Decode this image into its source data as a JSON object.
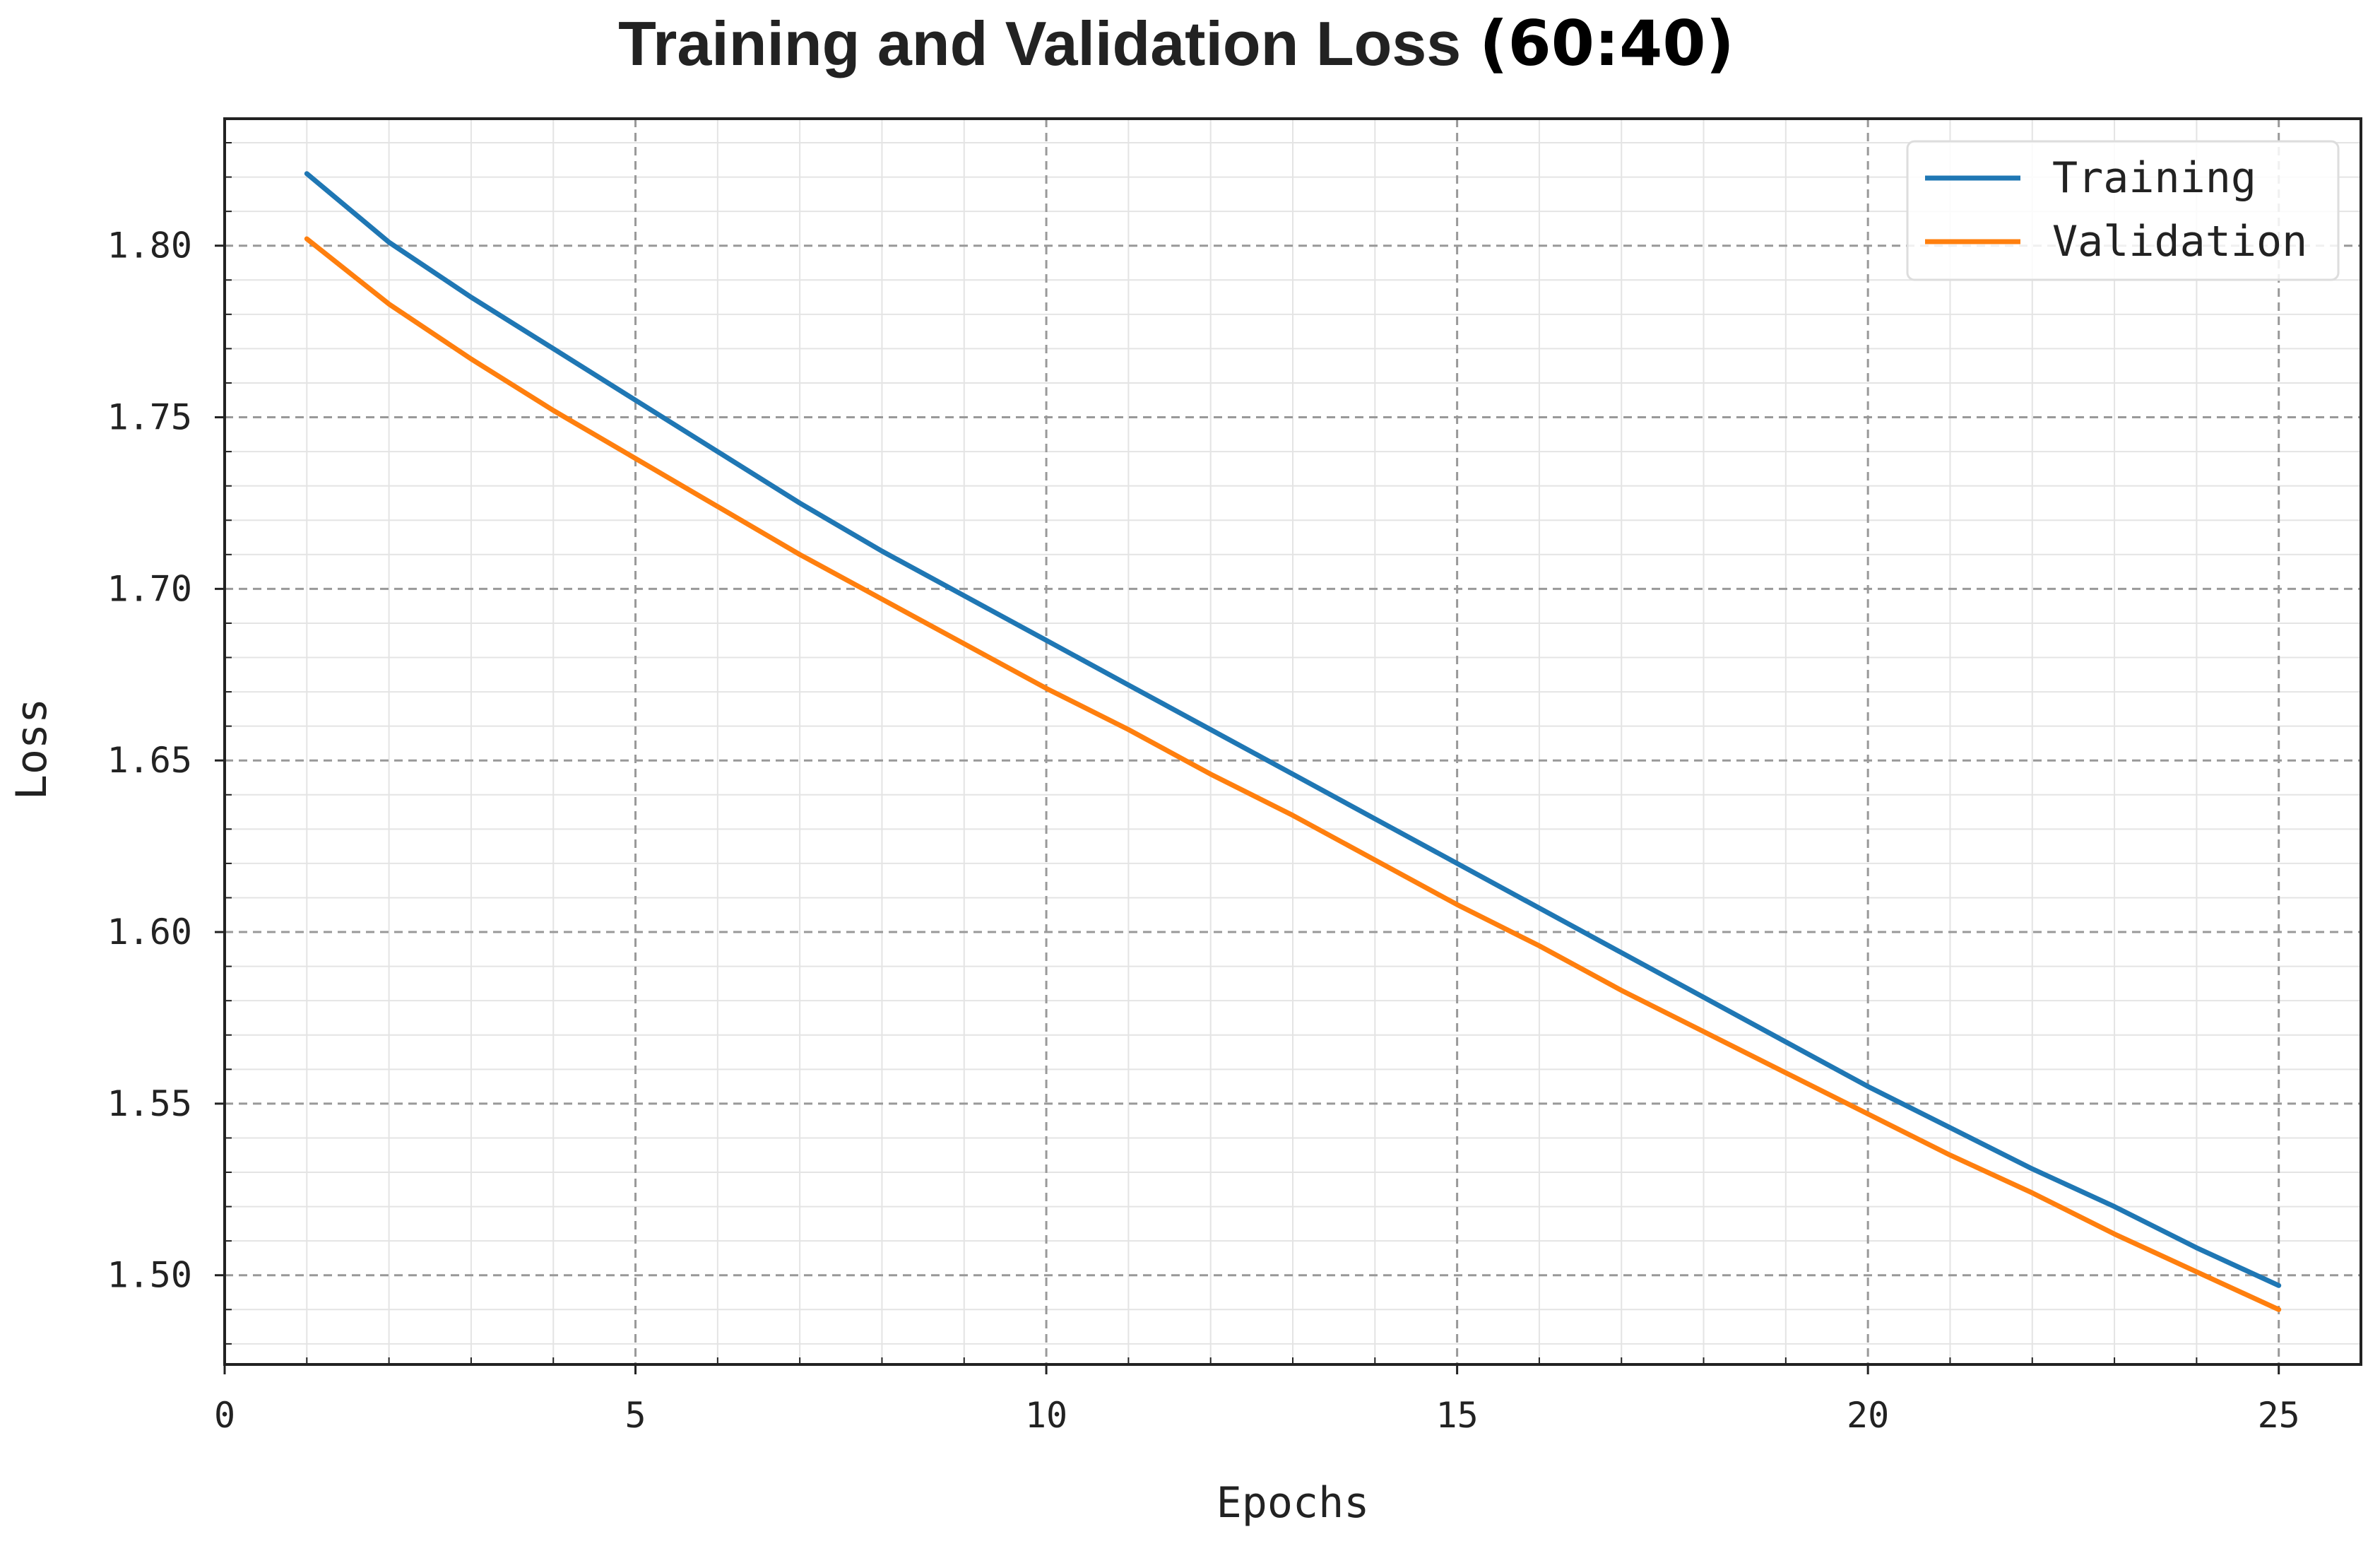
{
  "chart_data": {
    "type": "line",
    "title": "Training and Validation Loss",
    "title_suffix": "(60:40)",
    "xlabel": "Epochs",
    "ylabel": "Loss",
    "xlim": [
      0,
      26
    ],
    "ylim": [
      1.474,
      1.837
    ],
    "xticks": [
      0,
      5,
      10,
      15,
      20,
      25
    ],
    "xtick_labels": [
      "0",
      "5",
      "10",
      "15",
      "20",
      "25"
    ],
    "yticks": [
      1.5,
      1.55,
      1.6,
      1.65,
      1.7,
      1.75,
      1.8
    ],
    "ytick_labels": [
      "1.50",
      "1.55",
      "1.60",
      "1.65",
      "1.70",
      "1.75",
      "1.80"
    ],
    "x_minor_step": 1,
    "y_minor_step": 0.01,
    "grid": true,
    "legend_position": "top-right",
    "x": [
      1,
      2,
      3,
      4,
      5,
      6,
      7,
      8,
      9,
      10,
      11,
      12,
      13,
      14,
      15,
      16,
      17,
      18,
      19,
      20,
      21,
      22,
      23,
      24,
      25
    ],
    "series": [
      {
        "name": "Training",
        "color": "#1f77b4",
        "values": [
          1.821,
          1.801,
          1.785,
          1.77,
          1.755,
          1.74,
          1.725,
          1.711,
          1.698,
          1.685,
          1.672,
          1.659,
          1.646,
          1.633,
          1.62,
          1.607,
          1.594,
          1.581,
          1.568,
          1.555,
          1.543,
          1.531,
          1.52,
          1.508,
          1.497
        ]
      },
      {
        "name": "Validation",
        "color": "#ff7f0e",
        "values": [
          1.802,
          1.783,
          1.767,
          1.752,
          1.738,
          1.724,
          1.71,
          1.697,
          1.684,
          1.671,
          1.659,
          1.646,
          1.634,
          1.621,
          1.608,
          1.596,
          1.583,
          1.571,
          1.559,
          1.547,
          1.535,
          1.524,
          1.512,
          1.501,
          1.49
        ]
      }
    ]
  }
}
